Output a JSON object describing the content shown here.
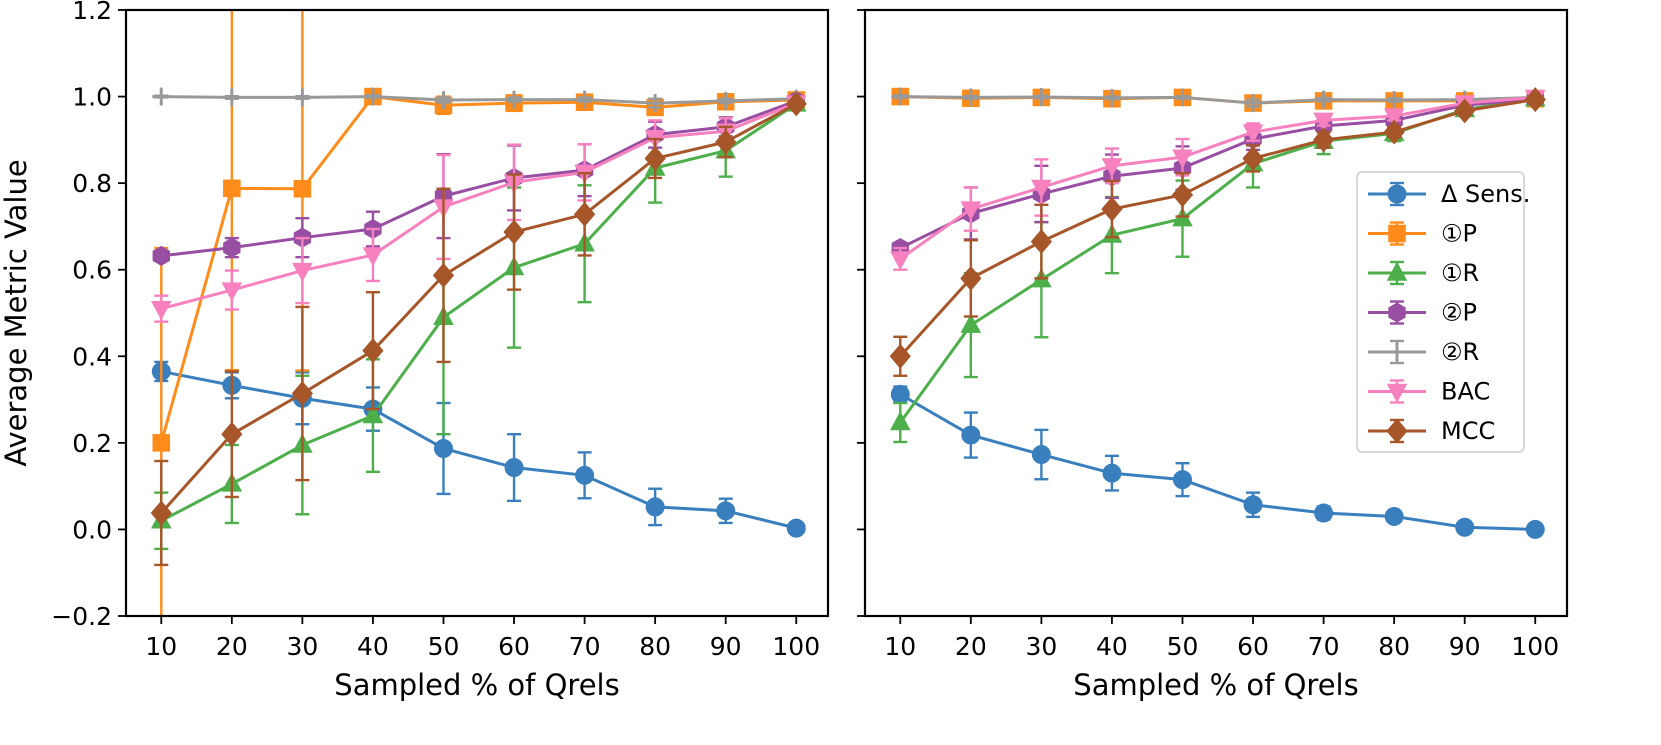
{
  "chart_data": [
    {
      "type": "line",
      "panel": "left",
      "xlabel": "Sampled % of Qrels",
      "ylabel": "Average Metric Value",
      "ylim": [
        -0.2,
        1.2
      ],
      "yticks": [
        "−0.2",
        "0.0",
        "0.2",
        "0.4",
        "0.6",
        "0.8",
        "1.0",
        "1.2"
      ],
      "x": [
        10,
        20,
        30,
        40,
        50,
        60,
        70,
        80,
        90,
        100
      ],
      "series": [
        {
          "name": "Δ Sens.",
          "color": "#3a7fbd",
          "marker": "circle",
          "values": [
            0.365,
            0.333,
            0.303,
            0.278,
            0.187,
            0.143,
            0.125,
            0.052,
            0.043,
            0.003
          ],
          "errors": [
            0.022,
            0.03,
            0.06,
            0.05,
            0.105,
            0.077,
            0.053,
            0.042,
            0.028,
            0.004
          ]
        },
        {
          "name": "①P",
          "color": "#ff8c1a",
          "marker": "square",
          "values": [
            0.2,
            0.788,
            0.787,
            1.0,
            0.98,
            0.985,
            0.987,
            0.975,
            0.988,
            0.992
          ],
          "errors": [
            0.45,
            0.42,
            0.42,
            0.008,
            0.02,
            0.018,
            0.016,
            0.015,
            0.008,
            0.004
          ]
        },
        {
          "name": "①R",
          "color": "#4daf4a",
          "marker": "triangle-up",
          "values": [
            0.02,
            0.105,
            0.195,
            0.263,
            0.49,
            0.605,
            0.66,
            0.835,
            0.875,
            0.983
          ],
          "errors": [
            0.065,
            0.09,
            0.16,
            0.13,
            0.27,
            0.185,
            0.135,
            0.08,
            0.06,
            0.01
          ]
        },
        {
          "name": "②P",
          "color": "#984ea3",
          "marker": "hexagon",
          "values": [
            0.632,
            0.651,
            0.674,
            0.694,
            0.77,
            0.812,
            0.83,
            0.912,
            0.93,
            0.99
          ],
          "errors": [
            0.008,
            0.022,
            0.045,
            0.04,
            0.097,
            0.075,
            0.06,
            0.03,
            0.022,
            0.004
          ]
        },
        {
          "name": "②R",
          "color": "#999999",
          "marker": "plus",
          "values": [
            1.0,
            0.998,
            0.998,
            1.0,
            0.992,
            0.993,
            0.993,
            0.985,
            0.99,
            0.995
          ],
          "errors": [
            0.002,
            0.003,
            0.003,
            0.003,
            0.006,
            0.005,
            0.005,
            0.01,
            0.005,
            0.003
          ]
        },
        {
          "name": "BAC",
          "color": "#f781bf",
          "marker": "triangle-down",
          "values": [
            0.51,
            0.553,
            0.598,
            0.634,
            0.745,
            0.802,
            0.825,
            0.905,
            0.92,
            0.985
          ],
          "errors": [
            0.03,
            0.045,
            0.075,
            0.06,
            0.12,
            0.087,
            0.065,
            0.04,
            0.03,
            0.006
          ]
        },
        {
          "name": "MCC",
          "color": "#a65628",
          "marker": "diamond",
          "values": [
            0.038,
            0.22,
            0.314,
            0.413,
            0.587,
            0.687,
            0.728,
            0.857,
            0.895,
            0.983
          ],
          "errors": [
            0.12,
            0.145,
            0.2,
            0.135,
            0.2,
            0.133,
            0.095,
            0.045,
            0.035,
            0.008
          ]
        }
      ]
    },
    {
      "type": "line",
      "panel": "right",
      "xlabel": "Sampled % of Qrels",
      "ylabel": "",
      "ylim": [
        -0.2,
        1.2
      ],
      "x": [
        10,
        20,
        30,
        40,
        50,
        60,
        70,
        80,
        90,
        100
      ],
      "legend_position": "center-right",
      "series": [
        {
          "name": "Δ Sens.",
          "color": "#3a7fbd",
          "marker": "circle",
          "values": [
            0.312,
            0.218,
            0.173,
            0.13,
            0.115,
            0.057,
            0.038,
            0.03,
            0.005,
            0.0
          ],
          "errors": [
            0.018,
            0.052,
            0.057,
            0.04,
            0.038,
            0.028,
            0.015,
            0.012,
            0.004,
            0.002
          ]
        },
        {
          "name": "①P",
          "color": "#ff8c1a",
          "marker": "square",
          "values": [
            1.0,
            0.996,
            0.998,
            0.995,
            0.998,
            0.985,
            0.99,
            0.99,
            0.99,
            0.995
          ],
          "errors": [
            0.004,
            0.004,
            0.004,
            0.004,
            0.004,
            0.01,
            0.006,
            0.005,
            0.005,
            0.003
          ]
        },
        {
          "name": "①R",
          "color": "#4daf4a",
          "marker": "triangle-up",
          "values": [
            0.247,
            0.472,
            0.577,
            0.68,
            0.718,
            0.845,
            0.897,
            0.915,
            0.97,
            0.995
          ],
          "errors": [
            0.045,
            0.12,
            0.133,
            0.088,
            0.088,
            0.055,
            0.03,
            0.018,
            0.012,
            0.005
          ]
        },
        {
          "name": "②P",
          "color": "#984ea3",
          "marker": "hexagon",
          "values": [
            0.65,
            0.73,
            0.775,
            0.816,
            0.835,
            0.902,
            0.932,
            0.945,
            0.98,
            0.995
          ],
          "errors": [
            0.012,
            0.06,
            0.065,
            0.05,
            0.05,
            0.025,
            0.015,
            0.012,
            0.008,
            0.004
          ]
        },
        {
          "name": "②R",
          "color": "#999999",
          "marker": "plus",
          "values": [
            1.0,
            0.998,
            0.999,
            0.997,
            0.998,
            0.985,
            0.993,
            0.992,
            0.993,
            0.998
          ],
          "errors": [
            0.003,
            0.003,
            0.003,
            0.003,
            0.003,
            0.008,
            0.004,
            0.004,
            0.004,
            0.002
          ]
        },
        {
          "name": "BAC",
          "color": "#f781bf",
          "marker": "triangle-down",
          "values": [
            0.625,
            0.74,
            0.79,
            0.84,
            0.86,
            0.918,
            0.945,
            0.955,
            0.985,
            0.998
          ],
          "errors": [
            0.025,
            0.05,
            0.065,
            0.04,
            0.042,
            0.02,
            0.012,
            0.01,
            0.006,
            0.003
          ]
        },
        {
          "name": "MCC",
          "color": "#a65628",
          "marker": "diamond",
          "values": [
            0.4,
            0.58,
            0.665,
            0.74,
            0.773,
            0.857,
            0.9,
            0.918,
            0.967,
            0.993
          ],
          "errors": [
            0.045,
            0.088,
            0.085,
            0.065,
            0.05,
            0.03,
            0.018,
            0.012,
            0.008,
            0.005
          ]
        }
      ]
    }
  ]
}
